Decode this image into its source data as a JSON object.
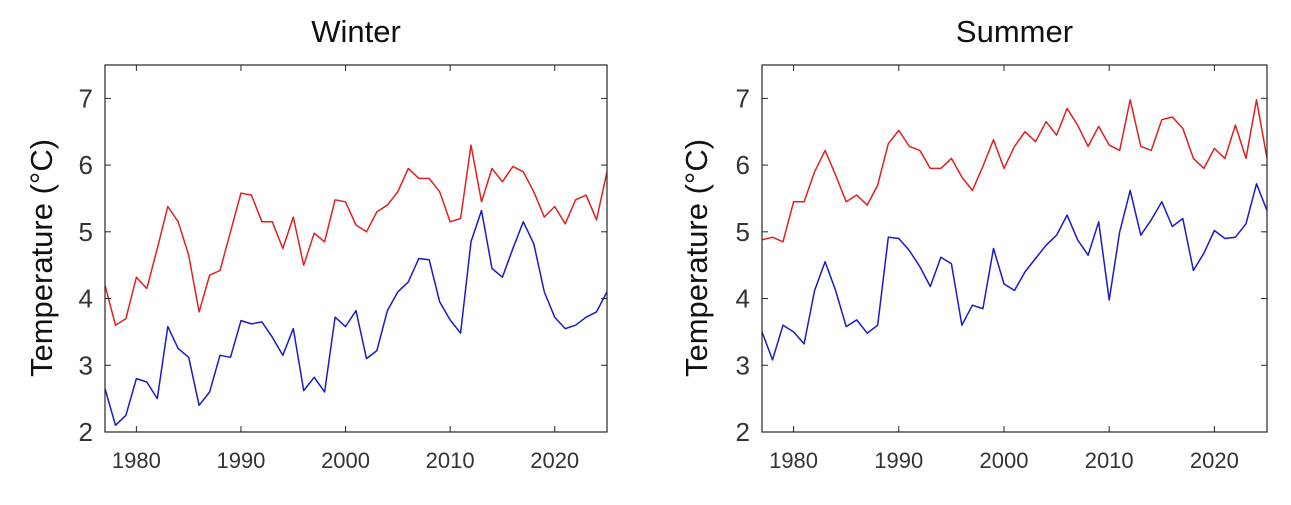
{
  "chart_data": [
    {
      "type": "line",
      "title": "Winter",
      "xlabel": "",
      "ylabel": "Temperature (°C)",
      "xlim": [
        1977,
        2025
      ],
      "ylim": [
        2,
        7.5
      ],
      "xticks": [
        1980,
        1990,
        2000,
        2010,
        2020
      ],
      "yticks": [
        2,
        3,
        4,
        5,
        6,
        7
      ],
      "grid": false,
      "x": [
        1977,
        1978,
        1979,
        1980,
        1981,
        1982,
        1983,
        1984,
        1985,
        1986,
        1987,
        1988,
        1989,
        1990,
        1991,
        1992,
        1993,
        1994,
        1995,
        1996,
        1997,
        1998,
        1999,
        2000,
        2001,
        2002,
        2003,
        2004,
        2005,
        2006,
        2007,
        2008,
        2009,
        2010,
        2011,
        2012,
        2013,
        2014,
        2015,
        2016,
        2017,
        2018,
        2019,
        2020,
        2021,
        2022,
        2023,
        2024,
        2025
      ],
      "series": [
        {
          "color": "#e02020",
          "values": [
            4.2,
            3.6,
            3.7,
            4.32,
            4.15,
            4.75,
            5.38,
            5.15,
            4.65,
            3.8,
            4.35,
            4.42,
            5.0,
            5.58,
            5.55,
            5.15,
            5.15,
            4.75,
            5.22,
            4.5,
            4.98,
            4.85,
            5.48,
            5.45,
            5.1,
            5.0,
            5.3,
            5.4,
            5.6,
            5.95,
            5.8,
            5.8,
            5.6,
            5.15,
            5.2,
            6.3,
            5.45,
            5.95,
            5.75,
            5.98,
            5.9,
            5.6,
            5.22,
            5.38,
            5.12,
            5.48,
            5.55,
            5.18,
            5.9
          ]
        },
        {
          "color": "#1a1acc",
          "values": [
            2.65,
            2.1,
            2.25,
            2.8,
            2.75,
            2.5,
            3.58,
            3.25,
            3.12,
            2.4,
            2.6,
            3.15,
            3.12,
            3.67,
            3.62,
            3.65,
            3.42,
            3.15,
            3.55,
            2.62,
            2.82,
            2.6,
            3.72,
            3.58,
            3.82,
            3.1,
            3.22,
            3.82,
            4.1,
            4.25,
            4.6,
            4.58,
            3.95,
            3.68,
            3.48,
            4.85,
            5.32,
            4.45,
            4.32,
            4.75,
            5.15,
            4.82,
            4.1,
            3.72,
            3.55,
            3.6,
            3.72,
            3.8,
            4.1
          ]
        }
      ]
    },
    {
      "type": "line",
      "title": "Summer",
      "xlabel": "",
      "ylabel": "Temperature (°C)",
      "xlim": [
        1977,
        2025
      ],
      "ylim": [
        2,
        7.5
      ],
      "xticks": [
        1980,
        1990,
        2000,
        2010,
        2020
      ],
      "yticks": [
        2,
        3,
        4,
        5,
        6,
        7
      ],
      "grid": false,
      "x": [
        1977,
        1978,
        1979,
        1980,
        1981,
        1982,
        1983,
        1984,
        1985,
        1986,
        1987,
        1988,
        1989,
        1990,
        1991,
        1992,
        1993,
        1994,
        1995,
        1996,
        1997,
        1998,
        1999,
        2000,
        2001,
        2002,
        2003,
        2004,
        2005,
        2006,
        2007,
        2008,
        2009,
        2010,
        2011,
        2012,
        2013,
        2014,
        2015,
        2016,
        2017,
        2018,
        2019,
        2020,
        2021,
        2022,
        2023,
        2024,
        2025
      ],
      "series": [
        {
          "color": "#e02020",
          "values": [
            4.88,
            4.92,
            4.85,
            5.45,
            5.45,
            5.9,
            6.22,
            5.85,
            5.45,
            5.55,
            5.4,
            5.7,
            6.32,
            6.52,
            6.28,
            6.22,
            5.95,
            5.95,
            6.1,
            5.82,
            5.62,
            5.98,
            6.38,
            5.95,
            6.28,
            6.5,
            6.35,
            6.65,
            6.45,
            6.85,
            6.6,
            6.28,
            6.58,
            6.3,
            6.22,
            6.98,
            6.28,
            6.22,
            6.68,
            6.72,
            6.55,
            6.1,
            5.95,
            6.25,
            6.1,
            6.6,
            6.1,
            6.98,
            6.1
          ]
        },
        {
          "color": "#1a1acc",
          "values": [
            3.5,
            3.08,
            3.6,
            3.5,
            3.32,
            4.12,
            4.55,
            4.12,
            3.58,
            3.68,
            3.48,
            3.6,
            4.92,
            4.9,
            4.72,
            4.48,
            4.18,
            4.62,
            4.52,
            3.6,
            3.9,
            3.85,
            4.75,
            4.22,
            4.12,
            4.4,
            4.6,
            4.8,
            4.95,
            5.25,
            4.88,
            4.65,
            5.15,
            3.98,
            5.0,
            5.62,
            4.95,
            5.18,
            5.45,
            5.08,
            5.2,
            4.42,
            4.68,
            5.02,
            4.9,
            4.92,
            5.12,
            5.72,
            5.32
          ]
        }
      ]
    }
  ]
}
